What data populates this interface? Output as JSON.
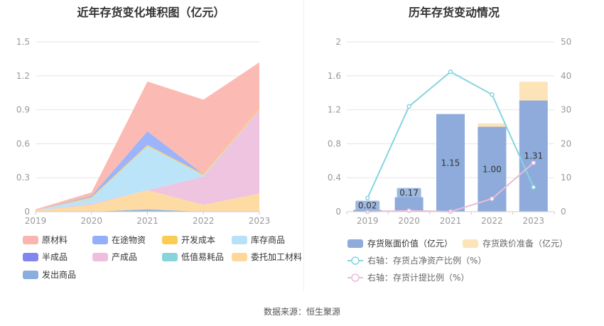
{
  "titles": {
    "left": "近年存货变化堆积图（亿元）",
    "right": "历年存货变动情况"
  },
  "source": "数据来源：恒生聚源",
  "chart_data": [
    {
      "type": "area",
      "stacked": true,
      "title": "近年存货变化堆积图（亿元）",
      "categories": [
        "2019",
        "2020",
        "2021",
        "2022",
        "2023"
      ],
      "ylim": [
        0,
        1.5
      ],
      "yticks": [
        "0",
        "0.3",
        "0.6",
        "0.9",
        "1.2",
        "1.5"
      ],
      "grid": true,
      "legend_position": "bottom",
      "series": [
        {
          "name": "发出商品",
          "color": "#8aaede",
          "values": [
            0,
            0,
            0.02,
            0.0,
            0.0
          ]
        },
        {
          "name": "委托加工材料",
          "color": "#fdd89a",
          "values": [
            0.01,
            0.06,
            0.17,
            0.06,
            0.16
          ]
        },
        {
          "name": "低值易耗品",
          "color": "#88d4dc",
          "values": [
            0,
            0,
            0,
            0,
            0
          ]
        },
        {
          "name": "产成品",
          "color": "#eebfdd",
          "values": [
            0,
            0.01,
            0.0,
            0.25,
            0.74
          ]
        },
        {
          "name": "半成品",
          "color": "#8186ee",
          "values": [
            0,
            0,
            0,
            0,
            0
          ]
        },
        {
          "name": "库存商品",
          "color": "#b5e2f8",
          "values": [
            0,
            0.05,
            0.39,
            0.01,
            0
          ]
        },
        {
          "name": "开发成本",
          "color": "#fbcb52",
          "values": [
            0,
            0.01,
            0.01,
            0.01,
            0.01
          ]
        },
        {
          "name": "在途物资",
          "color": "#93aefb",
          "values": [
            0,
            0.01,
            0.12,
            0,
            0
          ]
        },
        {
          "name": "原材料",
          "color": "#fbb5ae",
          "values": [
            0.01,
            0.03,
            0.44,
            0.66,
            0.41
          ]
        }
      ],
      "legend_order": [
        "原材料",
        "在途物资",
        "开发成本",
        "库存商品",
        "半成品",
        "产成品",
        "低值易耗品",
        "委托加工材料",
        "发出商品"
      ]
    },
    {
      "type": "bar",
      "stacked": true,
      "title": "历年存货变动情况",
      "categories": [
        "2019",
        "2020",
        "2021",
        "2022",
        "2023"
      ],
      "ylim": [
        0,
        2
      ],
      "yticks": [
        "0",
        "0.4",
        "0.8",
        "1.2",
        "1.6",
        "2"
      ],
      "y2lim": [
        0,
        50
      ],
      "y2ticks": [
        "0",
        "10",
        "20",
        "30",
        "40",
        "50"
      ],
      "grid": true,
      "legend_position": "bottom",
      "bars": [
        {
          "name": "存货账面价值（亿元）",
          "color": "#8eabdb",
          "values": [
            0.02,
            0.17,
            1.15,
            1.0,
            1.31
          ],
          "labels": [
            "0.02",
            "0.17",
            "1.15",
            "1.00",
            "1.31"
          ]
        },
        {
          "name": "存货跌价准备（亿元）",
          "color": "#fde3b8",
          "values": [
            0,
            0,
            0,
            0.04,
            0.22
          ]
        }
      ],
      "lines": [
        {
          "name": "右轴：存货占净资产比例（%）",
          "color": "#86d5e0",
          "axis": "right",
          "values": [
            4.0,
            31.0,
            41.2,
            34.5,
            7.2
          ]
        },
        {
          "name": "右轴：存货计提比例（%）",
          "color": "#e9bcd9",
          "axis": "right",
          "values": [
            0,
            0.3,
            0,
            3.8,
            14.4
          ]
        }
      ]
    }
  ]
}
